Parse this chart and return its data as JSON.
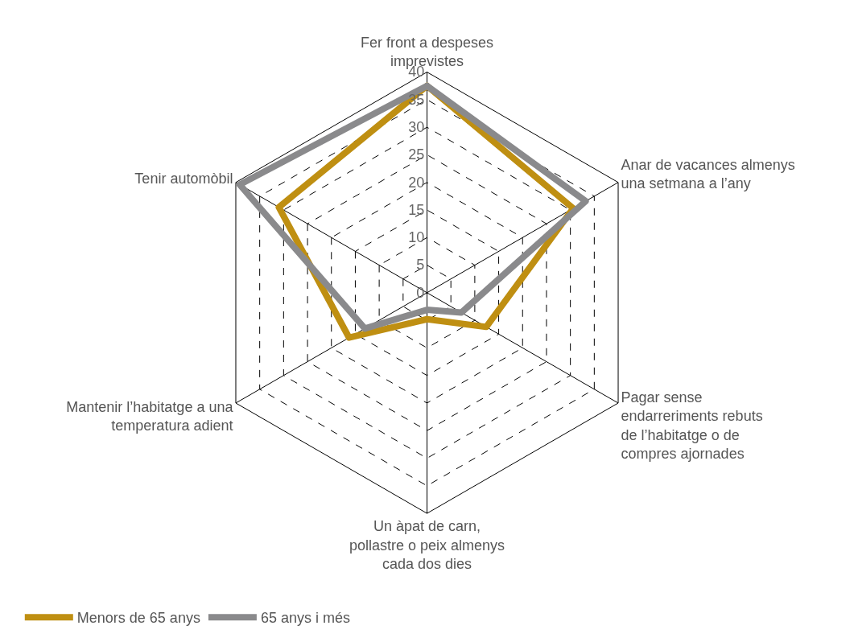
{
  "chart_data": {
    "type": "radar",
    "categories": [
      "Fer front a despeses\nimprevistes",
      "Anar de vacances almenys\nuna setmana a l’any",
      "Pagar sense\nendarreriments rebuts\nde l’habitatge o de\ncompres ajornades",
      "Un àpat de carn,\npollastre o peix almenys\ncada dos dies",
      "Mantenir l’habitatge a una\ntemperatura adient",
      "Tenir automòbil"
    ],
    "series": [
      {
        "name": "Menors de 65 anys",
        "color": "#bf8f12",
        "values": [
          37.5,
          30.6,
          12.4,
          4.8,
          16.3,
          31
        ]
      },
      {
        "name": "65 anys i més",
        "color": "#8a8a8c",
        "values": [
          37.5,
          33.2,
          7.2,
          3.1,
          13,
          39.2
        ]
      }
    ],
    "ylim": [
      0,
      40
    ],
    "yticks": [
      0,
      5,
      10,
      15,
      20,
      25,
      30,
      35,
      40
    ],
    "grid": true,
    "legend": "bottom left",
    "line_style": "solid",
    "marker": "none"
  }
}
